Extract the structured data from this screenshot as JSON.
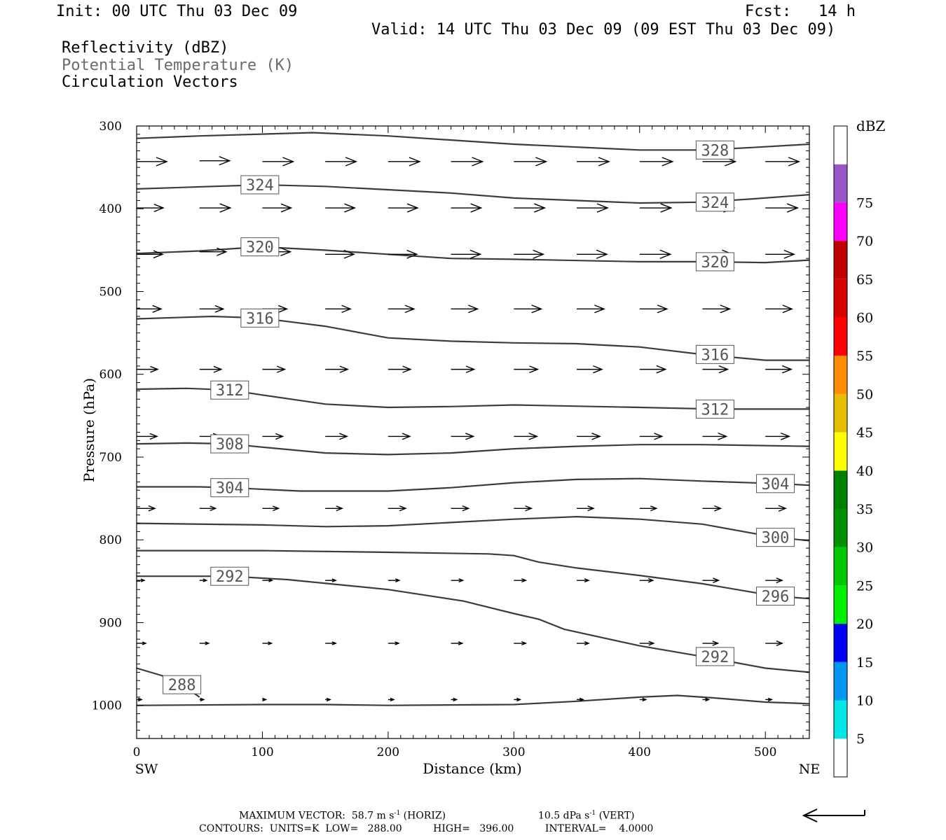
{
  "header": {
    "init": "Init: 00 UTC Thu 03 Dec 09",
    "fcst_label": "Fcst:",
    "fcst_value": "14 h",
    "valid": "Valid: 14 UTC Thu 03 Dec 09 (09 EST Thu 03 Dec 09)"
  },
  "fields": {
    "reflectivity": "Reflectivity (dBZ)",
    "theta": "Potential Temperature (K)",
    "vectors": "Circulation Vectors"
  },
  "footer": {
    "max_vector": "MAXIMUM VECTOR:  58.7 m s",
    "max_vector_sup1": "-1",
    "max_vector_horiz": " (HORIZ)",
    "max_vector_vert": "10.5 dPa s",
    "max_vector_sup2": "-1",
    "max_vector_vert_tail": " (VERT)",
    "contours": "CONTOURS:  UNITS=K  LOW=   288.00          HIGH=   396.00          INTERVAL=    4.0000"
  },
  "chart_data": {
    "type": "cross-section",
    "xlabel": "Distance (km)",
    "ylabel": "Pressure (hPa)",
    "x_ticks": [
      0,
      100,
      200,
      300,
      400,
      500
    ],
    "x_end_labels": {
      "left": "SW",
      "right": "NE"
    },
    "xlim": [
      0,
      535
    ],
    "ylim": [
      1040,
      300
    ],
    "y_ticks": [
      300,
      400,
      500,
      600,
      700,
      800,
      900,
      1000
    ],
    "colorbar": {
      "title": "dBZ",
      "labels": [
        5,
        10,
        15,
        20,
        25,
        30,
        35,
        40,
        45,
        50,
        55,
        60,
        65,
        70,
        75
      ],
      "colors": [
        "#ffffff",
        "#00e5e5",
        "#0096f0",
        "#0000f5",
        "#00f000",
        "#00c800",
        "#009000",
        "#008000",
        "#ffff00",
        "#e6bf00",
        "#ff8c00",
        "#ff0000",
        "#d70000",
        "#c00000",
        "#ff00ff",
        "#9955c8",
        "#ffffff"
      ]
    },
    "contours": [
      {
        "level": 328,
        "pts": [
          [
            0,
            315
          ],
          [
            50,
            312
          ],
          [
            140,
            308
          ],
          [
            200,
            312
          ],
          [
            300,
            322
          ],
          [
            400,
            329
          ],
          [
            450,
            329
          ],
          [
            490,
            326
          ],
          [
            535,
            322
          ]
        ],
        "labels": [
          [
            460,
            329
          ]
        ]
      },
      {
        "level": 324,
        "pts": [
          [
            0,
            376
          ],
          [
            100,
            371
          ],
          [
            150,
            373
          ],
          [
            250,
            381
          ],
          [
            300,
            387
          ],
          [
            400,
            393
          ],
          [
            450,
            392
          ],
          [
            490,
            388
          ],
          [
            535,
            383
          ]
        ],
        "labels": [
          [
            98,
            371
          ],
          [
            460,
            392
          ]
        ]
      },
      {
        "level": 320,
        "pts": [
          [
            0,
            454
          ],
          [
            50,
            451
          ],
          [
            98,
            446
          ],
          [
            150,
            450
          ],
          [
            200,
            455
          ],
          [
            250,
            460
          ],
          [
            300,
            461
          ],
          [
            400,
            464
          ],
          [
            450,
            464
          ],
          [
            500,
            465
          ],
          [
            535,
            462
          ]
        ],
        "labels": [
          [
            98,
            446
          ],
          [
            460,
            464
          ]
        ]
      },
      {
        "level": 316,
        "pts": [
          [
            0,
            533
          ],
          [
            60,
            530
          ],
          [
            98,
            532
          ],
          [
            150,
            542
          ],
          [
            200,
            556
          ],
          [
            250,
            560
          ],
          [
            300,
            562
          ],
          [
            350,
            563
          ],
          [
            400,
            567
          ],
          [
            450,
            576
          ],
          [
            500,
            583
          ],
          [
            535,
            583
          ]
        ],
        "labels": [
          [
            98,
            532
          ],
          [
            460,
            576
          ]
        ]
      },
      {
        "level": 312,
        "pts": [
          [
            0,
            618
          ],
          [
            40,
            617
          ],
          [
            74,
            619
          ],
          [
            100,
            625
          ],
          [
            150,
            636
          ],
          [
            200,
            640
          ],
          [
            250,
            639
          ],
          [
            300,
            637
          ],
          [
            400,
            640
          ],
          [
            460,
            642
          ],
          [
            535,
            642
          ]
        ],
        "labels": [
          [
            74,
            619
          ],
          [
            460,
            642
          ]
        ]
      },
      {
        "level": 308,
        "pts": [
          [
            0,
            684
          ],
          [
            40,
            683
          ],
          [
            74,
            684
          ],
          [
            100,
            688
          ],
          [
            150,
            695
          ],
          [
            200,
            697
          ],
          [
            250,
            695
          ],
          [
            300,
            690
          ],
          [
            350,
            687
          ],
          [
            400,
            685
          ],
          [
            450,
            685
          ],
          [
            535,
            687
          ]
        ],
        "labels": [
          [
            74,
            684
          ]
        ]
      },
      {
        "level": 304,
        "pts": [
          [
            0,
            736
          ],
          [
            50,
            736
          ],
          [
            74,
            737
          ],
          [
            130,
            741
          ],
          [
            200,
            741
          ],
          [
            250,
            737
          ],
          [
            300,
            731
          ],
          [
            350,
            727
          ],
          [
            400,
            726
          ],
          [
            450,
            729
          ],
          [
            508,
            732
          ],
          [
            535,
            734
          ]
        ],
        "labels": [
          [
            74,
            737
          ],
          [
            508,
            732
          ]
        ]
      },
      {
        "level": 300,
        "pts": [
          [
            0,
            780
          ],
          [
            100,
            782
          ],
          [
            150,
            784
          ],
          [
            200,
            783
          ],
          [
            250,
            779
          ],
          [
            300,
            775
          ],
          [
            350,
            772
          ],
          [
            400,
            775
          ],
          [
            450,
            781
          ],
          [
            508,
            797
          ],
          [
            535,
            801
          ]
        ],
        "labels": [
          [
            508,
            797
          ]
        ]
      },
      {
        "level": 296,
        "pts": [
          [
            0,
            813
          ],
          [
            100,
            813
          ],
          [
            200,
            815
          ],
          [
            280,
            817
          ],
          [
            300,
            819
          ],
          [
            320,
            827
          ],
          [
            350,
            834
          ],
          [
            400,
            843
          ],
          [
            450,
            853
          ],
          [
            508,
            868
          ],
          [
            535,
            871
          ]
        ],
        "labels": [
          [
            508,
            868
          ]
        ]
      },
      {
        "level": 292,
        "pts": [
          [
            0,
            844
          ],
          [
            74,
            844
          ],
          [
            120,
            848
          ],
          [
            200,
            860
          ],
          [
            260,
            874
          ],
          [
            300,
            889
          ],
          [
            320,
            896
          ],
          [
            340,
            908
          ],
          [
            400,
            928
          ],
          [
            450,
            941
          ],
          [
            500,
            955
          ],
          [
            535,
            960
          ]
        ],
        "labels": [
          [
            74,
            844
          ],
          [
            460,
            941
          ]
        ]
      },
      {
        "level": 288,
        "pts": [
          [
            0,
            1000
          ],
          [
            100,
            999
          ],
          [
            150,
            999
          ],
          [
            200,
            1000
          ],
          [
            300,
            999
          ],
          [
            350,
            995
          ],
          [
            400,
            990
          ],
          [
            430,
            988
          ],
          [
            460,
            991
          ],
          [
            500,
            996
          ],
          [
            535,
            998
          ]
        ],
        "labels": []
      },
      {
        "level": 288,
        "pts": [
          [
            0,
            955
          ],
          [
            20,
            964
          ],
          [
            36,
            975
          ],
          [
            50,
            990
          ]
        ],
        "labels": [
          [
            36,
            975
          ]
        ]
      }
    ],
    "vectors": [
      {
        "x": 0,
        "p": 343,
        "u": 43
      },
      {
        "x": 0,
        "p": 399,
        "u": 38
      },
      {
        "x": 0,
        "p": 455,
        "u": 37
      },
      {
        "x": 0,
        "p": 521,
        "u": 35
      },
      {
        "x": 0,
        "p": 594,
        "u": 30
      },
      {
        "x": 0,
        "p": 675,
        "u": 29
      },
      {
        "x": 0,
        "p": 762,
        "u": 26
      },
      {
        "x": 0,
        "p": 849,
        "u": 11
      },
      {
        "x": 0,
        "p": 925,
        "u": 13
      },
      {
        "x": 0,
        "p": 993,
        "u": 7
      },
      {
        "x": 50,
        "p": 342,
        "u": 43
      },
      {
        "x": 50,
        "p": 399,
        "u": 44
      },
      {
        "x": 50,
        "p": 452,
        "u": 38
      },
      {
        "x": 50,
        "p": 521,
        "u": 34
      },
      {
        "x": 50,
        "p": 594,
        "u": 31
      },
      {
        "x": 50,
        "p": 675,
        "u": 30
      },
      {
        "x": 50,
        "p": 762,
        "u": 23
      },
      {
        "x": 50,
        "p": 849,
        "u": 10
      },
      {
        "x": 50,
        "p": 925,
        "u": 13
      },
      {
        "x": 50,
        "p": 993,
        "u": 6
      },
      {
        "x": 100,
        "p": 343,
        "u": 44
      },
      {
        "x": 100,
        "p": 399,
        "u": 41
      },
      {
        "x": 100,
        "p": 452,
        "u": 40
      },
      {
        "x": 100,
        "p": 521,
        "u": 35
      },
      {
        "x": 100,
        "p": 594,
        "u": 32
      },
      {
        "x": 100,
        "p": 675,
        "u": 29
      },
      {
        "x": 100,
        "p": 762,
        "u": 23
      },
      {
        "x": 100,
        "p": 849,
        "u": 14
      },
      {
        "x": 100,
        "p": 925,
        "u": 13
      },
      {
        "x": 100,
        "p": 993,
        "u": 5
      },
      {
        "x": 150,
        "p": 343,
        "u": 44
      },
      {
        "x": 150,
        "p": 399,
        "u": 42
      },
      {
        "x": 150,
        "p": 455,
        "u": 41
      },
      {
        "x": 150,
        "p": 521,
        "u": 36
      },
      {
        "x": 150,
        "p": 594,
        "u": 32
      },
      {
        "x": 150,
        "p": 675,
        "u": 31
      },
      {
        "x": 150,
        "p": 762,
        "u": 24
      },
      {
        "x": 150,
        "p": 849,
        "u": 15
      },
      {
        "x": 150,
        "p": 925,
        "u": 15
      },
      {
        "x": 150,
        "p": 993,
        "u": 7
      },
      {
        "x": 200,
        "p": 343,
        "u": 45
      },
      {
        "x": 200,
        "p": 399,
        "u": 42
      },
      {
        "x": 200,
        "p": 455,
        "u": 41
      },
      {
        "x": 200,
        "p": 521,
        "u": 37
      },
      {
        "x": 200,
        "p": 594,
        "u": 32
      },
      {
        "x": 200,
        "p": 675,
        "u": 31
      },
      {
        "x": 200,
        "p": 762,
        "u": 25
      },
      {
        "x": 200,
        "p": 849,
        "u": 16
      },
      {
        "x": 200,
        "p": 925,
        "u": 15
      },
      {
        "x": 200,
        "p": 993,
        "u": 8
      },
      {
        "x": 250,
        "p": 343,
        "u": 45
      },
      {
        "x": 250,
        "p": 399,
        "u": 43
      },
      {
        "x": 250,
        "p": 455,
        "u": 42
      },
      {
        "x": 250,
        "p": 521,
        "u": 38
      },
      {
        "x": 250,
        "p": 594,
        "u": 33
      },
      {
        "x": 250,
        "p": 675,
        "u": 32
      },
      {
        "x": 250,
        "p": 762,
        "u": 25
      },
      {
        "x": 250,
        "p": 849,
        "u": 17
      },
      {
        "x": 250,
        "p": 925,
        "u": 16
      },
      {
        "x": 250,
        "p": 993,
        "u": 8
      },
      {
        "x": 300,
        "p": 343,
        "u": 46
      },
      {
        "x": 300,
        "p": 399,
        "u": 44
      },
      {
        "x": 300,
        "p": 455,
        "u": 42
      },
      {
        "x": 300,
        "p": 521,
        "u": 39
      },
      {
        "x": 300,
        "p": 594,
        "u": 34
      },
      {
        "x": 300,
        "p": 675,
        "u": 33
      },
      {
        "x": 300,
        "p": 762,
        "u": 25
      },
      {
        "x": 300,
        "p": 849,
        "u": 17
      },
      {
        "x": 300,
        "p": 925,
        "u": 17
      },
      {
        "x": 300,
        "p": 993,
        "u": 9
      },
      {
        "x": 350,
        "p": 343,
        "u": 46
      },
      {
        "x": 350,
        "p": 399,
        "u": 44
      },
      {
        "x": 350,
        "p": 455,
        "u": 43
      },
      {
        "x": 350,
        "p": 521,
        "u": 39
      },
      {
        "x": 350,
        "p": 594,
        "u": 36
      },
      {
        "x": 350,
        "p": 675,
        "u": 33
      },
      {
        "x": 350,
        "p": 762,
        "u": 24
      },
      {
        "x": 350,
        "p": 849,
        "u": 17
      },
      {
        "x": 350,
        "p": 925,
        "u": 17
      },
      {
        "x": 350,
        "p": 993,
        "u": 9
      },
      {
        "x": 400,
        "p": 343,
        "u": 47
      },
      {
        "x": 400,
        "p": 399,
        "u": 45
      },
      {
        "x": 400,
        "p": 455,
        "u": 44
      },
      {
        "x": 400,
        "p": 521,
        "u": 39
      },
      {
        "x": 400,
        "p": 594,
        "u": 37
      },
      {
        "x": 400,
        "p": 675,
        "u": 32
      },
      {
        "x": 400,
        "p": 762,
        "u": 24
      },
      {
        "x": 400,
        "p": 849,
        "u": 19
      },
      {
        "x": 400,
        "p": 925,
        "u": 20
      },
      {
        "x": 400,
        "p": 993,
        "u": 9
      },
      {
        "x": 450,
        "p": 343,
        "u": 47
      },
      {
        "x": 450,
        "p": 399,
        "u": 45
      },
      {
        "x": 450,
        "p": 455,
        "u": 43
      },
      {
        "x": 450,
        "p": 521,
        "u": 39
      },
      {
        "x": 450,
        "p": 594,
        "u": 36
      },
      {
        "x": 450,
        "p": 675,
        "u": 34
      },
      {
        "x": 450,
        "p": 762,
        "u": 26
      },
      {
        "x": 450,
        "p": 849,
        "u": 23
      },
      {
        "x": 450,
        "p": 925,
        "u": 22
      },
      {
        "x": 450,
        "p": 993,
        "u": 9
      },
      {
        "x": 500,
        "p": 343,
        "u": 48
      },
      {
        "x": 500,
        "p": 399,
        "u": 46
      },
      {
        "x": 500,
        "p": 455,
        "u": 41
      },
      {
        "x": 500,
        "p": 521,
        "u": 38
      },
      {
        "x": 500,
        "p": 594,
        "u": 37
      },
      {
        "x": 500,
        "p": 675,
        "u": 34
      },
      {
        "x": 500,
        "p": 762,
        "u": 29
      },
      {
        "x": 500,
        "p": 849,
        "u": 24
      },
      {
        "x": 500,
        "p": 925,
        "u": 24
      },
      {
        "x": 500,
        "p": 993,
        "u": 9
      }
    ]
  }
}
